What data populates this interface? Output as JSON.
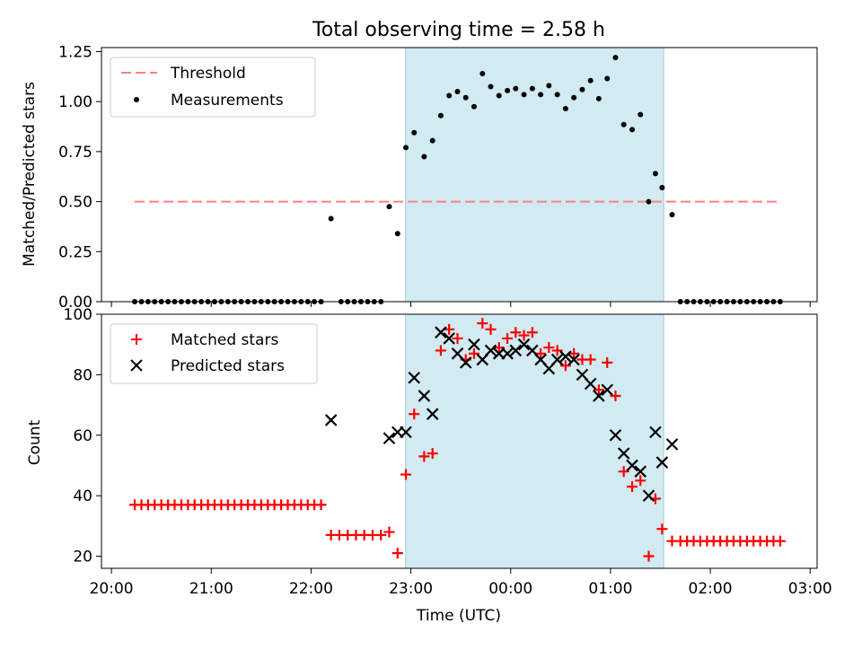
{
  "title": "Total observing time = 2.58 h",
  "chart_data": [
    {
      "type": "scatter",
      "ylabel": "Matched/Predicted stars",
      "ylim": [
        0,
        1.27
      ],
      "yticks": [
        0,
        0.25,
        0.5,
        0.75,
        1.0,
        1.25
      ],
      "ytick_labels": [
        "0.00",
        "0.25",
        "0.50",
        "0.75",
        "1.00",
        "1.25"
      ],
      "x_unit": "hours since 20:00 UTC",
      "xlim": [
        -0.1,
        7.07
      ],
      "observing_window": [
        2.947,
        5.533
      ],
      "threshold": {
        "value": 0.5,
        "x_start": 0.233,
        "x_end": 6.7
      },
      "legend": {
        "location": "upper left",
        "entries": [
          "Threshold",
          "Measurements"
        ]
      },
      "colors": {
        "threshold": "#ff7f7f",
        "measurements": "#000000",
        "shade": "#add8e6"
      },
      "series": [
        {
          "name": "Measurements",
          "points": [
            [
              0.233,
              0
            ],
            [
              0.3,
              0
            ],
            [
              0.367,
              0
            ],
            [
              0.433,
              0
            ],
            [
              0.5,
              0
            ],
            [
              0.567,
              0
            ],
            [
              0.633,
              0
            ],
            [
              0.7,
              0
            ],
            [
              0.767,
              0
            ],
            [
              0.833,
              0
            ],
            [
              0.9,
              0
            ],
            [
              0.967,
              0
            ],
            [
              1.033,
              0
            ],
            [
              1.1,
              0
            ],
            [
              1.167,
              0
            ],
            [
              1.233,
              0
            ],
            [
              1.3,
              0
            ],
            [
              1.367,
              0
            ],
            [
              1.433,
              0
            ],
            [
              1.5,
              0
            ],
            [
              1.567,
              0
            ],
            [
              1.633,
              0
            ],
            [
              1.7,
              0
            ],
            [
              1.767,
              0
            ],
            [
              1.833,
              0
            ],
            [
              1.9,
              0
            ],
            [
              1.967,
              0
            ],
            [
              2.033,
              0
            ],
            [
              2.1,
              0
            ],
            [
              2.2,
              0.415
            ],
            [
              2.3,
              0
            ],
            [
              2.367,
              0
            ],
            [
              2.433,
              0
            ],
            [
              2.5,
              0
            ],
            [
              2.567,
              0
            ],
            [
              2.633,
              0
            ],
            [
              2.7,
              0
            ],
            [
              2.783,
              0.475
            ],
            [
              2.867,
              0.34
            ],
            [
              2.95,
              0.77
            ],
            [
              3.033,
              0.845
            ],
            [
              3.133,
              0.725
            ],
            [
              3.217,
              0.805
            ],
            [
              3.3,
              0.93
            ],
            [
              3.383,
              1.03
            ],
            [
              3.467,
              1.05
            ],
            [
              3.55,
              1.02
            ],
            [
              3.633,
              0.975
            ],
            [
              3.717,
              1.14
            ],
            [
              3.8,
              1.075
            ],
            [
              3.883,
              1.03
            ],
            [
              3.967,
              1.055
            ],
            [
              4.05,
              1.065
            ],
            [
              4.133,
              1.035
            ],
            [
              4.217,
              1.065
            ],
            [
              4.3,
              1.035
            ],
            [
              4.383,
              1.08
            ],
            [
              4.467,
              1.035
            ],
            [
              4.55,
              0.965
            ],
            [
              4.633,
              1.02
            ],
            [
              4.717,
              1.06
            ],
            [
              4.8,
              1.105
            ],
            [
              4.883,
              1.015
            ],
            [
              4.967,
              1.115
            ],
            [
              5.05,
              1.22
            ],
            [
              5.133,
              0.885
            ],
            [
              5.217,
              0.86
            ],
            [
              5.3,
              0.935
            ],
            [
              5.383,
              0.5
            ],
            [
              5.45,
              0.64
            ],
            [
              5.517,
              0.57
            ],
            [
              5.617,
              0.435
            ],
            [
              5.7,
              0
            ],
            [
              5.767,
              0
            ],
            [
              5.833,
              0
            ],
            [
              5.9,
              0
            ],
            [
              5.967,
              0
            ],
            [
              6.033,
              0
            ],
            [
              6.1,
              0
            ],
            [
              6.167,
              0
            ],
            [
              6.233,
              0
            ],
            [
              6.3,
              0
            ],
            [
              6.367,
              0
            ],
            [
              6.433,
              0
            ],
            [
              6.5,
              0
            ],
            [
              6.567,
              0
            ],
            [
              6.633,
              0
            ],
            [
              6.7,
              0
            ]
          ]
        }
      ]
    },
    {
      "type": "scatter",
      "xlabel": "Time (UTC)",
      "ylabel": "Count",
      "ylim": [
        16,
        100
      ],
      "yticks": [
        20,
        40,
        60,
        80,
        100
      ],
      "ytick_labels": [
        "20",
        "40",
        "60",
        "80",
        "100"
      ],
      "x_unit": "hours since 20:00 UTC",
      "xlim": [
        -0.1,
        7.07
      ],
      "xticks": [
        0,
        1,
        2,
        3,
        4,
        5,
        6,
        7
      ],
      "xtick_labels": [
        "20:00",
        "21:00",
        "22:00",
        "23:00",
        "00:00",
        "01:00",
        "02:00",
        "03:00"
      ],
      "observing_window": [
        2.947,
        5.533
      ],
      "legend": {
        "location": "upper left",
        "entries": [
          "Matched stars",
          "Predicted stars"
        ]
      },
      "colors": {
        "matched": "#ff0000",
        "predicted": "#000000",
        "shade": "#add8e6"
      },
      "series": [
        {
          "name": "Matched stars",
          "marker": "plus",
          "points": [
            [
              0.233,
              37
            ],
            [
              0.3,
              37
            ],
            [
              0.367,
              37
            ],
            [
              0.433,
              37
            ],
            [
              0.5,
              37
            ],
            [
              0.567,
              37
            ],
            [
              0.633,
              37
            ],
            [
              0.7,
              37
            ],
            [
              0.767,
              37
            ],
            [
              0.833,
              37
            ],
            [
              0.9,
              37
            ],
            [
              0.967,
              37
            ],
            [
              1.033,
              37
            ],
            [
              1.1,
              37
            ],
            [
              1.167,
              37
            ],
            [
              1.233,
              37
            ],
            [
              1.3,
              37
            ],
            [
              1.367,
              37
            ],
            [
              1.433,
              37
            ],
            [
              1.5,
              37
            ],
            [
              1.567,
              37
            ],
            [
              1.633,
              37
            ],
            [
              1.7,
              37
            ],
            [
              1.767,
              37
            ],
            [
              1.833,
              37
            ],
            [
              1.9,
              37
            ],
            [
              1.967,
              37
            ],
            [
              2.033,
              37
            ],
            [
              2.1,
              37
            ],
            [
              2.2,
              27
            ],
            [
              2.283,
              27
            ],
            [
              2.367,
              27
            ],
            [
              2.45,
              27
            ],
            [
              2.533,
              27
            ],
            [
              2.617,
              27
            ],
            [
              2.7,
              27
            ],
            [
              2.783,
              28
            ],
            [
              2.867,
              21
            ],
            [
              2.95,
              47
            ],
            [
              3.033,
              67
            ],
            [
              3.133,
              53
            ],
            [
              3.217,
              54
            ],
            [
              3.3,
              88
            ],
            [
              3.383,
              95
            ],
            [
              3.467,
              92
            ],
            [
              3.55,
              85
            ],
            [
              3.633,
              87
            ],
            [
              3.717,
              97
            ],
            [
              3.8,
              95
            ],
            [
              3.883,
              89
            ],
            [
              3.967,
              92
            ],
            [
              4.05,
              94
            ],
            [
              4.133,
              93
            ],
            [
              4.217,
              94
            ],
            [
              4.3,
              87
            ],
            [
              4.383,
              89
            ],
            [
              4.467,
              88
            ],
            [
              4.55,
              83
            ],
            [
              4.633,
              87
            ],
            [
              4.717,
              85
            ],
            [
              4.8,
              85
            ],
            [
              4.883,
              75
            ],
            [
              4.967,
              84
            ],
            [
              5.05,
              73
            ],
            [
              5.133,
              48
            ],
            [
              5.217,
              43
            ],
            [
              5.3,
              45
            ],
            [
              5.383,
              20
            ],
            [
              5.45,
              39
            ],
            [
              5.517,
              29
            ],
            [
              5.617,
              25
            ],
            [
              5.7,
              25
            ],
            [
              5.767,
              25
            ],
            [
              5.833,
              25
            ],
            [
              5.9,
              25
            ],
            [
              5.967,
              25
            ],
            [
              6.033,
              25
            ],
            [
              6.1,
              25
            ],
            [
              6.167,
              25
            ],
            [
              6.233,
              25
            ],
            [
              6.3,
              25
            ],
            [
              6.367,
              25
            ],
            [
              6.433,
              25
            ],
            [
              6.5,
              25
            ],
            [
              6.567,
              25
            ],
            [
              6.633,
              25
            ],
            [
              6.7,
              25
            ]
          ]
        },
        {
          "name": "Predicted stars",
          "marker": "x",
          "points": [
            [
              2.2,
              65
            ],
            [
              2.783,
              59
            ],
            [
              2.867,
              61
            ],
            [
              2.95,
              61
            ],
            [
              3.033,
              79
            ],
            [
              3.133,
              73
            ],
            [
              3.217,
              67
            ],
            [
              3.3,
              94
            ],
            [
              3.383,
              92
            ],
            [
              3.467,
              87
            ],
            [
              3.55,
              84
            ],
            [
              3.633,
              90
            ],
            [
              3.717,
              85
            ],
            [
              3.8,
              88
            ],
            [
              3.883,
              87
            ],
            [
              3.967,
              87
            ],
            [
              4.05,
              88
            ],
            [
              4.133,
              90
            ],
            [
              4.217,
              88
            ],
            [
              4.3,
              85
            ],
            [
              4.383,
              82
            ],
            [
              4.467,
              85
            ],
            [
              4.55,
              86
            ],
            [
              4.633,
              85
            ],
            [
              4.717,
              80
            ],
            [
              4.8,
              77
            ],
            [
              4.883,
              73
            ],
            [
              4.967,
              75
            ],
            [
              5.05,
              60
            ],
            [
              5.133,
              54
            ],
            [
              5.217,
              50
            ],
            [
              5.3,
              48
            ],
            [
              5.383,
              40
            ],
            [
              5.45,
              61
            ],
            [
              5.517,
              51
            ],
            [
              5.617,
              57
            ]
          ]
        }
      ]
    }
  ]
}
